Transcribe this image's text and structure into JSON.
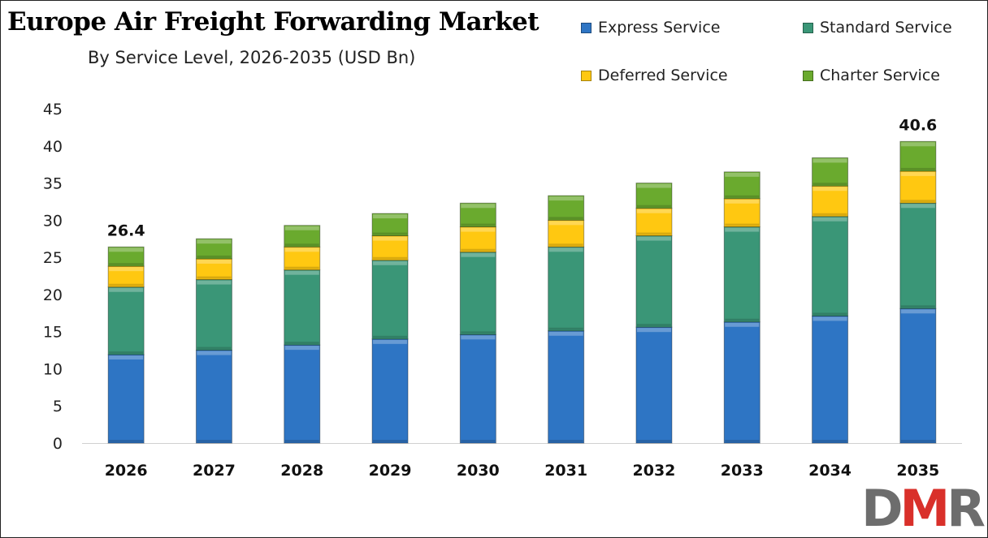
{
  "chart_data": {
    "type": "stacked-bar",
    "title": "Europe Air Freight Forwarding Market",
    "subtitle": "By Service Level, 2026-2035 (USD Bn)",
    "categories": [
      "2026",
      "2027",
      "2028",
      "2029",
      "2030",
      "2031",
      "2032",
      "2033",
      "2034",
      "2035"
    ],
    "series": [
      {
        "name": "Express Service",
        "color": "#2E75C4",
        "values": [
          11.9,
          12.5,
          13.2,
          14.0,
          14.6,
          15.1,
          15.6,
          16.3,
          17.1,
          18.1
        ]
      },
      {
        "name": "Standard Service",
        "color": "#3A9677",
        "values": [
          9.1,
          9.5,
          10.1,
          10.6,
          11.1,
          11.3,
          12.3,
          12.8,
          13.4,
          14.2
        ]
      },
      {
        "name": "Deferred Service",
        "color": "#FFC811",
        "values": [
          2.8,
          2.8,
          3.1,
          3.3,
          3.4,
          3.6,
          3.7,
          3.8,
          4.1,
          4.3
        ]
      },
      {
        "name": "Charter Service",
        "color": "#6AAA2E",
        "values": [
          2.6,
          2.7,
          2.9,
          3.0,
          3.2,
          3.3,
          3.4,
          3.6,
          3.8,
          4.0
        ]
      }
    ],
    "data_labels": {
      "2026": "26.4",
      "2035": "40.6"
    },
    "ylim": [
      0,
      45
    ],
    "yticks": [
      "0",
      "5",
      "10",
      "15",
      "20",
      "25",
      "30",
      "35",
      "40",
      "45"
    ],
    "grid": false,
    "legend": "top-right"
  },
  "logo": {
    "text_d": "D",
    "text_m": "M",
    "text_r": "R",
    "gray": "#6d6d6d",
    "red": "#d9302a"
  }
}
